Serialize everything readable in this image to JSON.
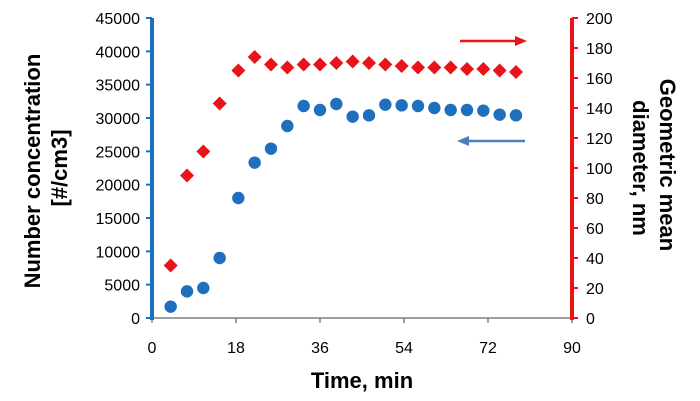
{
  "chart_data": {
    "type": "scatter",
    "title": "",
    "xlabel": "Time, min",
    "ylabel_left": [
      "Number concentration",
      "[#/cm3]"
    ],
    "ylabel_right": [
      "Geometric mean",
      "diameter, nm"
    ],
    "xlim": [
      0,
      90
    ],
    "xticks": [
      0,
      18,
      36,
      54,
      72,
      90
    ],
    "ylim_left": [
      0,
      45000
    ],
    "yticks_left": [
      0,
      5000,
      10000,
      15000,
      20000,
      25000,
      30000,
      35000,
      40000,
      45000
    ],
    "ylim_right": [
      0,
      200
    ],
    "yticks_right": [
      0,
      20,
      40,
      60,
      80,
      100,
      120,
      140,
      160,
      180,
      200
    ],
    "grid": false,
    "legend": "none",
    "axis_colors": {
      "left": "#1f6fbf",
      "right": "#e8141a"
    },
    "series": [
      {
        "axis": "left",
        "marker": "circle",
        "color": "#1f6fbf",
        "x": [
          4,
          7.5,
          11,
          14.5,
          18.5,
          22,
          25.5,
          29,
          32.5,
          36,
          39.5,
          43,
          46.5,
          50,
          53.5,
          57,
          60.5,
          64,
          67.5,
          71,
          74.5,
          78
        ],
        "y": [
          1700,
          4000,
          4500,
          9000,
          18000,
          23300,
          25400,
          28800,
          31800,
          31200,
          32100,
          30200,
          30400,
          32000,
          31900,
          31800,
          31500,
          31200,
          31200,
          31100,
          30500,
          30400
        ]
      },
      {
        "axis": "right",
        "marker": "diamond",
        "color": "#e8141a",
        "x": [
          4,
          7.5,
          11,
          14.5,
          18.5,
          22,
          25.5,
          29,
          32.5,
          36,
          39.5,
          43,
          46.5,
          50,
          53.5,
          57,
          60.5,
          64,
          67.5,
          71,
          74.5,
          78
        ],
        "y": [
          35,
          95,
          111,
          143,
          165,
          174,
          169,
          167,
          169,
          169,
          170,
          171,
          170,
          169,
          168,
          167,
          167,
          167,
          166,
          166,
          165,
          164
        ]
      }
    ],
    "arrows": [
      {
        "points_to": "right",
        "color": "#e8141a"
      },
      {
        "points_to": "left",
        "color": "#4a7fc0"
      }
    ]
  }
}
